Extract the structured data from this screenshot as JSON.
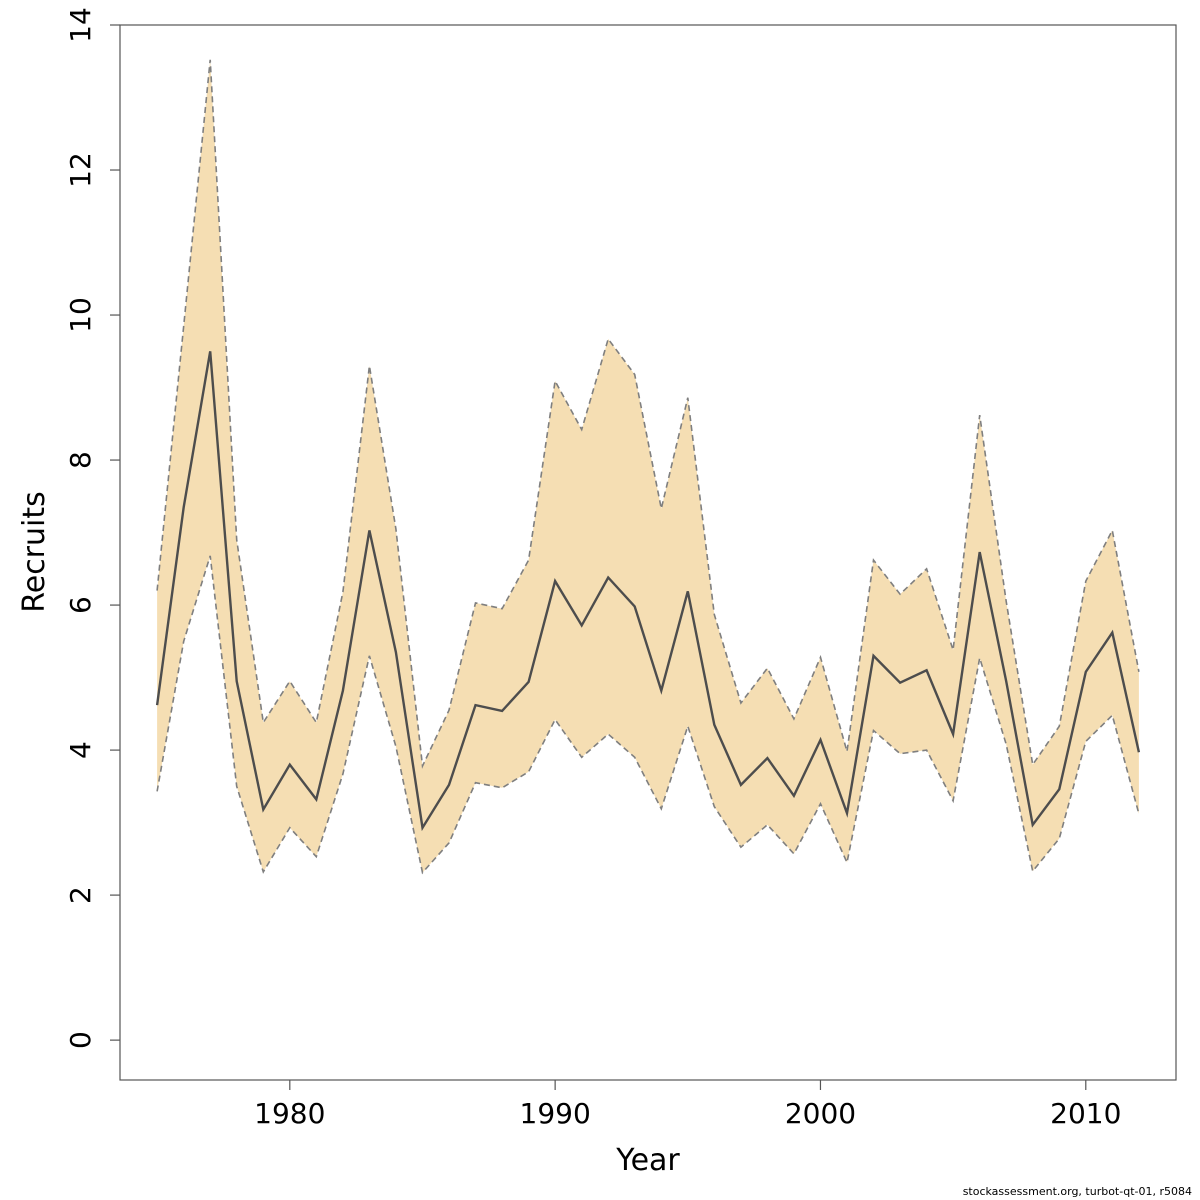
{
  "chart_data": {
    "type": "line",
    "xlabel": "Year",
    "ylabel": "Recruits",
    "xlim": [
      1973.6,
      2013.4
    ],
    "ylim": [
      -0.55,
      14
    ],
    "x_ticks": [
      1980,
      1990,
      2000,
      2010
    ],
    "y_ticks": [
      0,
      2,
      4,
      6,
      8,
      10,
      12,
      14
    ],
    "grid": false,
    "colors": {
      "band_fill": "#f5deb3",
      "band_edge": "#7f7f7f",
      "line": "#4d4d4d"
    },
    "x": [
      1975,
      1976,
      1977,
      1978,
      1979,
      1980,
      1981,
      1982,
      1983,
      1984,
      1985,
      1986,
      1987,
      1988,
      1989,
      1990,
      1991,
      1992,
      1993,
      1994,
      1995,
      1996,
      1997,
      1998,
      1999,
      2000,
      2001,
      2002,
      2003,
      2004,
      2005,
      2006,
      2007,
      2008,
      2009,
      2010,
      2011,
      2012
    ],
    "series": [
      {
        "role": "estimate",
        "style": "solid",
        "values": [
          4.62,
          7.35,
          9.5,
          4.95,
          3.18,
          3.8,
          3.32,
          4.82,
          7.03,
          5.35,
          2.93,
          3.52,
          4.62,
          4.54,
          4.94,
          6.33,
          5.72,
          6.38,
          5.98,
          4.82,
          6.19,
          4.35,
          3.52,
          3.89,
          3.37,
          4.14,
          3.13,
          5.3,
          4.93,
          5.1,
          4.22,
          6.73,
          4.95,
          2.97,
          3.46,
          5.08,
          5.62,
          3.97
        ]
      },
      {
        "role": "upper",
        "style": "dashed",
        "values": [
          6.2,
          9.85,
          13.52,
          6.9,
          4.38,
          4.95,
          4.38,
          6.18,
          9.3,
          7.05,
          3.78,
          4.55,
          6.03,
          5.95,
          6.62,
          9.09,
          8.42,
          9.67,
          9.18,
          7.33,
          8.86,
          5.87,
          4.65,
          5.13,
          4.43,
          5.28,
          3.98,
          6.62,
          6.15,
          6.5,
          5.38,
          8.62,
          6.05,
          3.8,
          4.33,
          6.33,
          7.03,
          5.08
        ]
      },
      {
        "role": "lower",
        "style": "dashed",
        "values": [
          3.43,
          5.5,
          6.68,
          3.5,
          2.32,
          2.93,
          2.53,
          3.67,
          5.3,
          4.05,
          2.31,
          2.72,
          3.55,
          3.48,
          3.7,
          4.42,
          3.9,
          4.22,
          3.9,
          3.19,
          4.33,
          3.22,
          2.66,
          2.97,
          2.57,
          3.26,
          2.45,
          4.27,
          3.95,
          4.0,
          3.3,
          5.27,
          4.08,
          2.33,
          2.78,
          4.12,
          4.48,
          3.12
        ]
      }
    ]
  },
  "footer": "stockassessment.org, turbot-qt-01, r5084"
}
